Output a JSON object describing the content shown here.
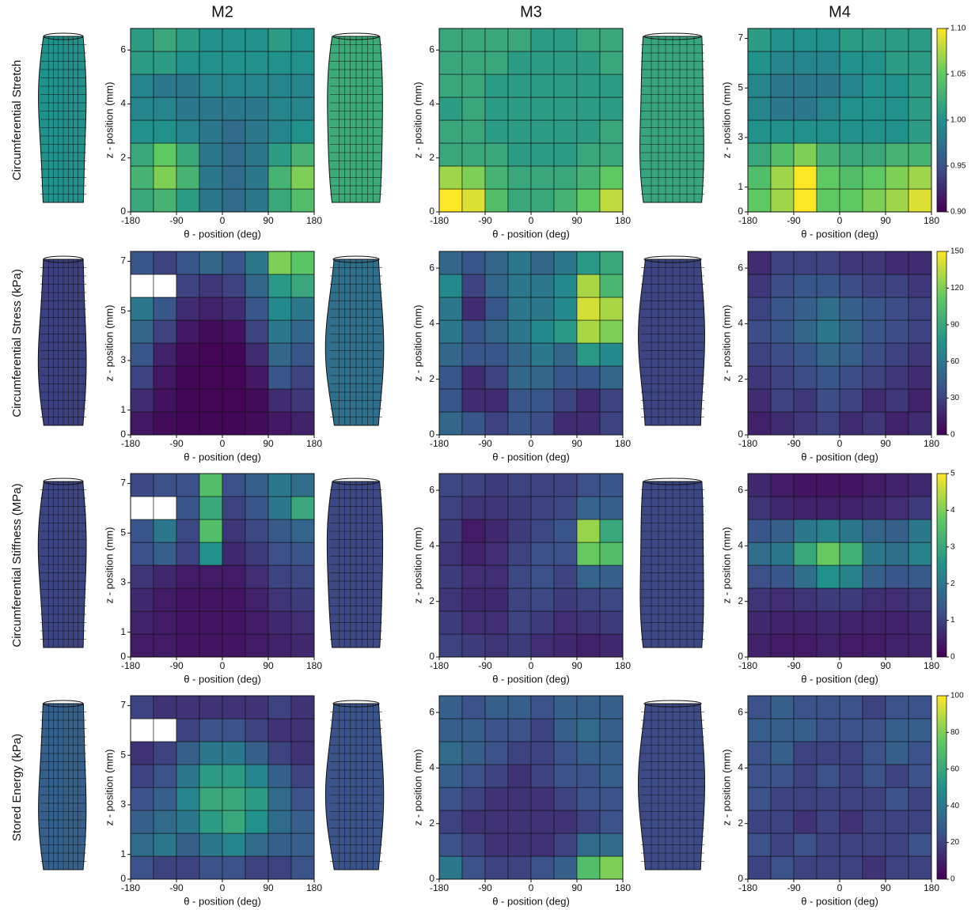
{
  "chart_data": [
    {
      "type": "heatmap",
      "title": "M2",
      "row_label": "Circumferential Stretch",
      "xlabel": "θ - position (deg)",
      "ylabel": "z - position (mm)",
      "xlim": [
        -180,
        180
      ],
      "xticks": [
        -180,
        -90,
        0,
        90,
        180
      ],
      "ylim": [
        0,
        6.8
      ],
      "yticks": [
        0,
        2,
        4,
        6
      ],
      "zlim": [
        0.9,
        1.1
      ],
      "z": [
        [
          1.02,
          1.03,
          1.01,
          0.98,
          0.97,
          0.98,
          1.02,
          1.04
        ],
        [
          1.03,
          1.06,
          1.03,
          0.98,
          0.97,
          0.98,
          1.03,
          1.06
        ],
        [
          1.02,
          1.05,
          1.02,
          0.98,
          0.97,
          0.98,
          1.01,
          1.03
        ],
        [
          1.0,
          1.0,
          0.99,
          0.98,
          0.97,
          0.98,
          0.99,
          1.0
        ],
        [
          0.99,
          0.99,
          0.98,
          0.98,
          0.98,
          0.98,
          0.99,
          0.99
        ],
        [
          0.99,
          0.98,
          0.98,
          0.99,
          0.99,
          0.99,
          0.99,
          0.99
        ],
        [
          1.01,
          1.01,
          1.0,
          1.0,
          1.0,
          1.0,
          1.0,
          1.0
        ],
        [
          1.01,
          1.02,
          1.01,
          1.0,
          1.0,
          1.0,
          1.01,
          1.0
        ]
      ]
    },
    {
      "type": "heatmap",
      "title": "M3",
      "xlabel": "θ - position (deg)",
      "ylabel": "z - position (mm)",
      "xlim": [
        -180,
        180
      ],
      "xticks": [
        -180,
        -90,
        0,
        90,
        180
      ],
      "ylim": [
        0,
        6.8
      ],
      "yticks": [
        0,
        2,
        4,
        6
      ],
      "zlim": [
        0.9,
        1.1
      ],
      "z": [
        [
          1.1,
          1.09,
          1.04,
          1.02,
          1.02,
          1.03,
          1.05,
          1.08
        ],
        [
          1.07,
          1.06,
          1.03,
          1.02,
          1.02,
          1.02,
          1.03,
          1.05
        ],
        [
          1.02,
          1.02,
          1.02,
          1.01,
          1.01,
          1.01,
          1.02,
          1.02
        ],
        [
          1.02,
          1.02,
          1.01,
          1.01,
          1.01,
          1.01,
          1.01,
          1.02
        ],
        [
          1.01,
          1.02,
          1.01,
          1.01,
          1.01,
          1.01,
          1.01,
          1.01
        ],
        [
          1.02,
          1.02,
          1.01,
          1.01,
          1.01,
          1.01,
          1.01,
          1.01
        ],
        [
          1.02,
          1.02,
          1.02,
          1.01,
          1.01,
          1.01,
          1.01,
          1.02
        ],
        [
          1.02,
          1.02,
          1.02,
          1.02,
          1.01,
          1.01,
          1.02,
          1.02
        ]
      ]
    },
    {
      "type": "heatmap",
      "title": "M4",
      "xlabel": "θ - position (deg)",
      "ylabel": "z - position (mm)",
      "xlim": [
        -180,
        180
      ],
      "xticks": [
        -180,
        -90,
        0,
        90,
        180
      ],
      "ylim": [
        0,
        7.4
      ],
      "yticks": [
        0,
        1,
        3,
        5,
        7
      ],
      "zlim": [
        0.9,
        1.1
      ],
      "z": [
        [
          1.05,
          1.07,
          1.1,
          1.05,
          1.05,
          1.06,
          1.07,
          1.09
        ],
        [
          1.04,
          1.07,
          1.1,
          1.05,
          1.04,
          1.05,
          1.06,
          1.07
        ],
        [
          1.02,
          1.04,
          1.06,
          1.03,
          1.02,
          1.02,
          1.03,
          1.03
        ],
        [
          1.0,
          1.0,
          1.0,
          1.0,
          1.0,
          1.0,
          1.0,
          1.01
        ],
        [
          0.99,
          0.98,
          0.98,
          0.99,
          1.0,
          1.0,
          1.0,
          1.01
        ],
        [
          0.99,
          0.98,
          0.98,
          0.98,
          0.99,
          1.0,
          1.0,
          1.01
        ],
        [
          1.0,
          0.99,
          0.99,
          0.99,
          1.0,
          1.0,
          1.01,
          1.01
        ],
        [
          1.01,
          1.0,
          1.0,
          1.0,
          1.01,
          1.01,
          1.01,
          1.01
        ]
      ],
      "colorbar": {
        "ticks": [
          {
            "value": 0.9,
            "label": "0.90"
          },
          {
            "value": 0.95,
            "label": "0.95"
          },
          {
            "value": 1.0,
            "label": "1.00"
          },
          {
            "value": 1.05,
            "label": "1.05"
          },
          {
            "value": 1.1,
            "label": "1.10"
          }
        ]
      }
    },
    {
      "type": "heatmap",
      "row_label": "Circumferential Stress (kPa)",
      "xlabel": "θ - position (deg)",
      "ylabel": "z - position (mm)",
      "xlim": [
        -180,
        180
      ],
      "xticks": [
        -180,
        -90,
        0,
        90,
        180
      ],
      "ylim": [
        0,
        7.4
      ],
      "yticks": [
        0,
        1,
        3,
        5,
        7
      ],
      "zlim": [
        0,
        150
      ],
      "z": [
        [
          10,
          5,
          3,
          3,
          3,
          5,
          10,
          15
        ],
        [
          20,
          8,
          3,
          2,
          2,
          5,
          20,
          25
        ],
        [
          30,
          10,
          3,
          2,
          2,
          10,
          40,
          30
        ],
        [
          40,
          15,
          5,
          2,
          3,
          20,
          50,
          40
        ],
        [
          50,
          30,
          10,
          5,
          8,
          30,
          60,
          50
        ],
        [
          60,
          40,
          20,
          15,
          20,
          40,
          70,
          60
        ],
        [
          null,
          null,
          30,
          25,
          30,
          50,
          80,
          90
        ],
        [
          40,
          30,
          40,
          50,
          40,
          60,
          120,
          110
        ]
      ]
    },
    {
      "type": "heatmap",
      "xlabel": "θ - position (deg)",
      "ylabel": "z - position (mm)",
      "xlim": [
        -180,
        180
      ],
      "xticks": [
        -180,
        -90,
        0,
        90,
        180
      ],
      "ylim": [
        0,
        6.6
      ],
      "yticks": [
        0,
        2,
        4,
        6
      ],
      "zlim": [
        0,
        150
      ],
      "z": [
        [
          50,
          40,
          30,
          40,
          35,
          20,
          20,
          30
        ],
        [
          40,
          20,
          20,
          40,
          40,
          30,
          20,
          30
        ],
        [
          40,
          20,
          30,
          50,
          50,
          40,
          40,
          50
        ],
        [
          50,
          40,
          40,
          50,
          60,
          50,
          80,
          70
        ],
        [
          60,
          40,
          50,
          60,
          70,
          80,
          130,
          120
        ],
        [
          60,
          20,
          40,
          60,
          60,
          70,
          140,
          130
        ],
        [
          70,
          30,
          50,
          60,
          60,
          70,
          130,
          100
        ],
        [
          50,
          40,
          50,
          60,
          50,
          60,
          80,
          90
        ]
      ]
    },
    {
      "type": "heatmap",
      "xlabel": "θ - position (deg)",
      "ylabel": "z - position (mm)",
      "xlim": [
        -180,
        180
      ],
      "xticks": [
        -180,
        -90,
        0,
        90,
        180
      ],
      "ylim": [
        0,
        6.6
      ],
      "yticks": [
        0,
        2,
        4,
        6
      ],
      "zlim": [
        0,
        150
      ],
      "z": [
        [
          15,
          20,
          25,
          30,
          20,
          25,
          15,
          20
        ],
        [
          20,
          30,
          25,
          35,
          30,
          20,
          25,
          15
        ],
        [
          25,
          30,
          35,
          40,
          35,
          30,
          25,
          20
        ],
        [
          30,
          35,
          40,
          50,
          45,
          35,
          30,
          25
        ],
        [
          35,
          40,
          50,
          60,
          50,
          40,
          35,
          30
        ],
        [
          30,
          40,
          45,
          55,
          45,
          40,
          35,
          30
        ],
        [
          25,
          35,
          40,
          40,
          35,
          30,
          30,
          25
        ],
        [
          20,
          30,
          30,
          30,
          25,
          25,
          20,
          20
        ]
      ],
      "colorbar": {
        "ticks": [
          0,
          30,
          60,
          90,
          120,
          150
        ]
      }
    },
    {
      "type": "heatmap",
      "row_label": "Circumferential Stiffness (MPa)",
      "xlabel": "θ - position (deg)",
      "ylabel": "z - position (mm)",
      "xlim": [
        -180,
        180
      ],
      "xticks": [
        -180,
        -90,
        0,
        90,
        180
      ],
      "ylim": [
        0,
        7.4
      ],
      "yticks": [
        0,
        1,
        3,
        5,
        7
      ],
      "zlim": [
        0,
        5
      ],
      "z": [
        [
          0.4,
          0.4,
          0.3,
          0.3,
          0.3,
          0.4,
          0.5,
          0.6
        ],
        [
          0.5,
          0.4,
          0.3,
          0.3,
          0.3,
          0.4,
          0.6,
          0.7
        ],
        [
          0.6,
          0.4,
          0.3,
          0.3,
          0.3,
          0.5,
          0.8,
          0.9
        ],
        [
          0.8,
          0.6,
          0.4,
          0.4,
          0.4,
          0.7,
          1.0,
          1.1
        ],
        [
          1.2,
          1.5,
          1.0,
          2.5,
          0.6,
          0.9,
          1.2,
          1.3
        ],
        [
          1.3,
          2.0,
          1.1,
          3.5,
          0.8,
          1.1,
          1.4,
          1.6
        ],
        [
          null,
          null,
          1.3,
          3.0,
          1.0,
          1.3,
          2.0,
          3.0
        ],
        [
          1.1,
          1.2,
          1.2,
          3.5,
          1.2,
          1.5,
          2.0,
          1.8
        ]
      ]
    },
    {
      "type": "heatmap",
      "xlabel": "θ - position (deg)",
      "ylabel": "z - position (mm)",
      "xlim": [
        -180,
        180
      ],
      "xticks": [
        -180,
        -90,
        0,
        90,
        180
      ],
      "ylim": [
        0,
        6.6
      ],
      "yticks": [
        0,
        2,
        4,
        6
      ],
      "zlim": [
        0,
        5
      ],
      "z": [
        [
          1.0,
          0.9,
          0.8,
          0.9,
          0.7,
          0.6,
          0.5,
          0.6
        ],
        [
          0.9,
          0.7,
          0.7,
          1.0,
          0.9,
          0.7,
          0.8,
          0.9
        ],
        [
          0.8,
          0.6,
          0.6,
          1.0,
          1.1,
          0.9,
          1.0,
          1.1
        ],
        [
          0.9,
          0.7,
          0.7,
          1.1,
          1.2,
          1.0,
          1.6,
          1.5
        ],
        [
          0.8,
          0.5,
          0.7,
          1.0,
          1.2,
          1.2,
          3.8,
          3.5
        ],
        [
          0.9,
          0.4,
          0.6,
          0.9,
          1.1,
          1.3,
          4.2,
          3.0
        ],
        [
          1.0,
          0.8,
          0.8,
          0.9,
          1.0,
          1.1,
          1.6,
          1.5
        ],
        [
          1.1,
          1.0,
          0.9,
          1.0,
          1.0,
          1.0,
          1.2,
          1.3
        ]
      ]
    },
    {
      "type": "heatmap",
      "xlabel": "θ - position (deg)",
      "ylabel": "z - position (mm)",
      "xlim": [
        -180,
        180
      ],
      "xticks": [
        -180,
        -90,
        0,
        90,
        180
      ],
      "ylim": [
        0,
        6.6
      ],
      "yticks": [
        0,
        2,
        4,
        6
      ],
      "zlim": [
        0,
        5
      ],
      "z": [
        [
          0.5,
          0.4,
          0.4,
          0.5,
          0.4,
          0.4,
          0.5,
          0.5
        ],
        [
          0.6,
          0.5,
          0.5,
          0.6,
          0.5,
          0.5,
          0.5,
          0.6
        ],
        [
          0.8,
          0.7,
          0.8,
          0.9,
          0.9,
          0.7,
          0.7,
          0.8
        ],
        [
          1.2,
          1.3,
          1.8,
          2.5,
          2.2,
          1.5,
          1.3,
          1.4
        ],
        [
          1.8,
          2.0,
          3.0,
          3.8,
          3.2,
          2.0,
          1.8,
          2.2
        ],
        [
          1.3,
          1.5,
          2.0,
          2.2,
          2.0,
          1.6,
          1.5,
          2.0
        ],
        [
          0.8,
          0.6,
          0.5,
          0.5,
          0.5,
          0.6,
          0.7,
          0.9
        ],
        [
          0.6,
          0.4,
          0.3,
          0.3,
          0.3,
          0.4,
          0.5,
          0.6
        ]
      ],
      "colorbar": {
        "ticks": [
          0,
          1,
          2,
          3,
          4,
          5
        ]
      }
    },
    {
      "type": "heatmap",
      "row_label": "Stored Energy (kPa)",
      "xlabel": "θ - position (deg)",
      "ylabel": "z - position (mm)",
      "xlim": [
        -180,
        180
      ],
      "xticks": [
        -180,
        -90,
        0,
        90,
        180
      ],
      "ylim": [
        0,
        7.4
      ],
      "yticks": [
        0,
        1,
        3,
        5,
        7
      ],
      "zlim": [
        0,
        100
      ],
      "z": [
        [
          25,
          20,
          20,
          25,
          25,
          20,
          20,
          25
        ],
        [
          35,
          40,
          30,
          40,
          45,
          35,
          30,
          30
        ],
        [
          30,
          35,
          40,
          55,
          60,
          50,
          35,
          30
        ],
        [
          25,
          30,
          45,
          60,
          60,
          55,
          35,
          25
        ],
        [
          20,
          25,
          40,
          55,
          55,
          45,
          30,
          20
        ],
        [
          15,
          20,
          30,
          40,
          40,
          30,
          20,
          15
        ],
        [
          null,
          null,
          20,
          25,
          25,
          20,
          15,
          15
        ],
        [
          20,
          15,
          15,
          15,
          15,
          15,
          20,
          15
        ]
      ]
    },
    {
      "type": "heatmap",
      "xlabel": "θ - position (deg)",
      "ylabel": "z - position (mm)",
      "xlim": [
        -180,
        180
      ],
      "xticks": [
        -180,
        -90,
        0,
        90,
        180
      ],
      "ylim": [
        0,
        6.6
      ],
      "yticks": [
        0,
        2,
        4,
        6
      ],
      "zlim": [
        0,
        100
      ],
      "z": [
        [
          40,
          25,
          20,
          20,
          25,
          30,
          70,
          80
        ],
        [
          25,
          20,
          15,
          15,
          15,
          20,
          35,
          35
        ],
        [
          20,
          15,
          15,
          15,
          15,
          15,
          20,
          25
        ],
        [
          25,
          20,
          15,
          15,
          15,
          20,
          25,
          25
        ],
        [
          30,
          25,
          20,
          15,
          20,
          25,
          25,
          30
        ],
        [
          35,
          30,
          25,
          20,
          20,
          25,
          30,
          30
        ],
        [
          30,
          30,
          25,
          25,
          20,
          30,
          35,
          30
        ],
        [
          30,
          25,
          30,
          30,
          25,
          30,
          30,
          30
        ]
      ]
    },
    {
      "type": "heatmap",
      "xlabel": "θ - position (deg)",
      "ylabel": "z - position (mm)",
      "xlim": [
        -180,
        180
      ],
      "xticks": [
        -180,
        -90,
        0,
        90,
        180
      ],
      "ylim": [
        0,
        6.6
      ],
      "yticks": [
        0,
        2,
        4,
        6
      ],
      "zlim": [
        0,
        100
      ],
      "z": [
        [
          20,
          25,
          20,
          20,
          20,
          15,
          20,
          20
        ],
        [
          25,
          20,
          25,
          20,
          20,
          20,
          20,
          25
        ],
        [
          20,
          20,
          15,
          20,
          15,
          20,
          20,
          20
        ],
        [
          25,
          20,
          20,
          20,
          20,
          20,
          25,
          20
        ],
        [
          25,
          25,
          20,
          25,
          20,
          25,
          20,
          25
        ],
        [
          25,
          30,
          20,
          20,
          20,
          25,
          30,
          25
        ],
        [
          30,
          30,
          30,
          25,
          25,
          25,
          30,
          30
        ],
        [
          25,
          30,
          25,
          25,
          25,
          20,
          25,
          25
        ]
      ],
      "colorbar": {
        "ticks": [
          0,
          20,
          40,
          60,
          80,
          100
        ]
      }
    }
  ]
}
